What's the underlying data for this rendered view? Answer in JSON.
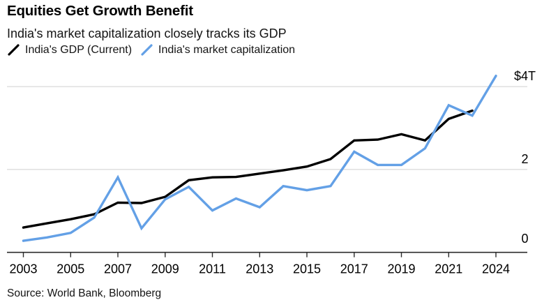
{
  "header": {
    "title": "Equities Get Growth Benefit",
    "subtitle": "India's market capitalization closely tracks its GDP"
  },
  "legend": [
    {
      "label": "India's GDP (Current)",
      "color": "#000000"
    },
    {
      "label": "India's market capitalization",
      "color": "#63A0E6"
    }
  ],
  "source": "Source: World Bank, Bloomberg",
  "colors": {
    "background": "#ffffff",
    "gridline": "#d9d9d9",
    "axis": "#2b2b2b",
    "gdp_line": "#000000",
    "mcap_line": "#63A0E6",
    "text": "#000000"
  },
  "chart_data": {
    "type": "line",
    "title": "Equities Get Growth Benefit",
    "subtitle": "India's market capitalization closely tracks its GDP",
    "y_unit": "USD trillions",
    "ylim": [
      0,
      4.55
    ],
    "grid": true,
    "legend_position": "top-left",
    "x": [
      2003,
      2004,
      2005,
      2006,
      2007,
      2008,
      2009,
      2010,
      2011,
      2012,
      2013,
      2014,
      2015,
      2016,
      2017,
      2018,
      2019,
      2020,
      2021,
      2022,
      2024
    ],
    "xticks": [
      2003,
      2005,
      2007,
      2009,
      2011,
      2013,
      2015,
      2017,
      2019,
      2021,
      2024
    ],
    "yticks": [
      {
        "value": 4,
        "label": "$4T"
      },
      {
        "value": 2,
        "label": "2"
      },
      {
        "value": 0,
        "label": "0"
      }
    ],
    "series": [
      {
        "name": "India's GDP (Current)",
        "color": "#000000",
        "values": [
          0.6,
          0.7,
          0.8,
          0.92,
          1.2,
          1.19,
          1.34,
          1.74,
          1.81,
          1.82,
          1.9,
          1.98,
          2.07,
          2.25,
          2.7,
          2.72,
          2.85,
          2.7,
          3.22,
          3.42,
          null
        ]
      },
      {
        "name": "India's market capitalization",
        "color": "#63A0E6",
        "values": [
          0.28,
          0.36,
          0.47,
          0.84,
          1.81,
          0.58,
          1.28,
          1.58,
          1.01,
          1.3,
          1.09,
          1.6,
          1.5,
          1.6,
          2.43,
          2.11,
          2.11,
          2.51,
          3.55,
          3.3,
          4.26
        ]
      }
    ]
  }
}
